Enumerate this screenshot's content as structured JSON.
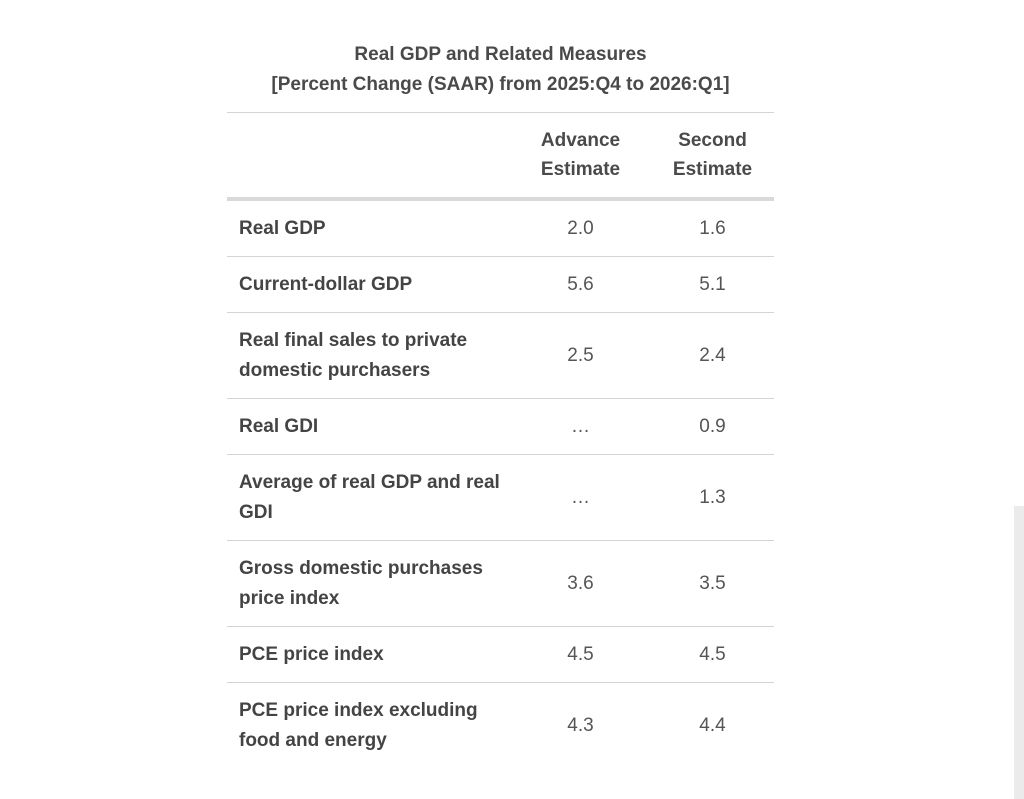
{
  "table": {
    "title": "Real GDP and Related Measures",
    "subtitle": "[Percent Change (SAAR) from 2025:Q4 to 2026:Q1]",
    "columns": {
      "label": "",
      "advance": [
        "Advance",
        "Estimate"
      ],
      "second": [
        "Second",
        "Estimate"
      ]
    },
    "rows": [
      {
        "label": "Real GDP",
        "advance": "2.0",
        "second": "1.6"
      },
      {
        "label": "Current-dollar GDP",
        "advance": "5.6",
        "second": "5.1"
      },
      {
        "label": "Real final sales to private domestic purchasers",
        "advance": "2.5",
        "second": "2.4"
      },
      {
        "label": "Real GDI",
        "advance": "…",
        "second": "0.9"
      },
      {
        "label": "Average of real GDP and real GDI",
        "advance": "…",
        "second": "1.3"
      },
      {
        "label": "Gross domestic purchases price index",
        "advance": "3.6",
        "second": "3.5"
      },
      {
        "label": "PCE price index",
        "advance": "4.5",
        "second": "4.5"
      },
      {
        "label": "PCE price index excluding food and energy",
        "advance": "4.3",
        "second": "4.4"
      }
    ]
  }
}
